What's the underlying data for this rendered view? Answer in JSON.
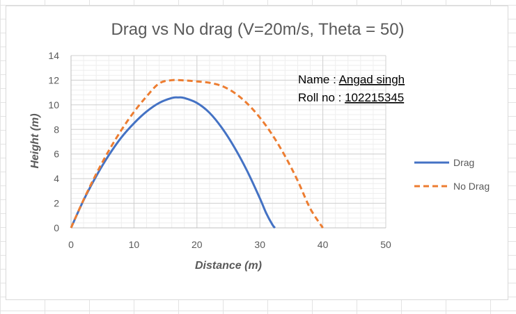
{
  "chart_data": {
    "type": "line",
    "title": "Drag vs No drag (V=20m/s, Theta = 50)",
    "xlabel": "Distance (m)",
    "ylabel": "Height (m)",
    "xlim": [
      0,
      50
    ],
    "ylim": [
      0,
      14
    ],
    "x_ticks": [
      "0",
      "10",
      "20",
      "30",
      "40",
      "50"
    ],
    "y_ticks": [
      "0",
      "2",
      "4",
      "6",
      "8",
      "10",
      "12",
      "14"
    ],
    "grid": true,
    "legend_position": "right",
    "series": [
      {
        "name": "Drag",
        "color": "#4472C4",
        "style": "solid",
        "x": [
          0,
          2,
          4,
          6,
          8,
          10,
          12,
          14,
          16,
          17,
          18,
          20,
          22,
          24,
          26,
          28,
          30,
          31,
          32,
          32.4
        ],
        "y": [
          0,
          2.25,
          4.2,
          5.9,
          7.35,
          8.5,
          9.45,
          10.15,
          10.55,
          10.6,
          10.55,
          10.15,
          9.35,
          8.1,
          6.5,
          4.6,
          2.4,
          1.2,
          0.25,
          0
        ]
      },
      {
        "name": "No Drag",
        "color": "#ED7D31",
        "style": "dashed",
        "x": [
          0,
          2,
          4,
          6,
          8,
          10,
          12,
          14,
          16,
          18,
          20,
          22,
          24,
          26,
          28,
          30,
          32,
          34,
          36,
          38,
          40
        ],
        "y": [
          0,
          2.29,
          4.38,
          6.27,
          7.95,
          9.42,
          10.68,
          11.74,
          12.0,
          11.98,
          11.9,
          11.79,
          11.52,
          10.96,
          10.1,
          8.96,
          7.54,
          5.83,
          3.84,
          1.57,
          0
        ]
      }
    ],
    "annotations": {
      "name_label": "Name : ",
      "name_value": "Angad singh",
      "roll_label": "Roll no : ",
      "roll_value": "102215345"
    }
  }
}
